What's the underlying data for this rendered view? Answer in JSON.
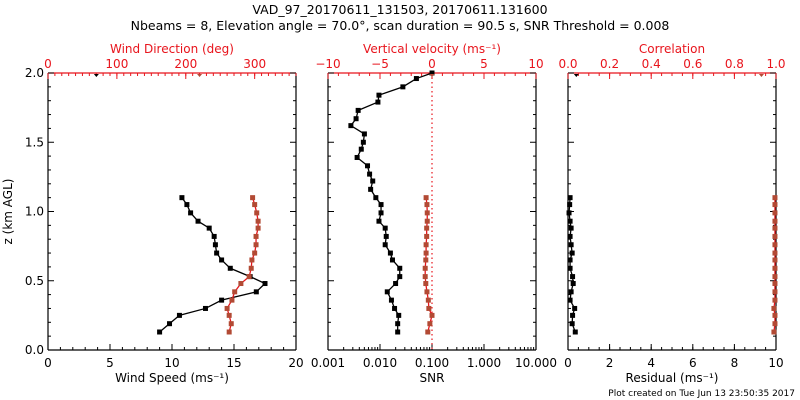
{
  "title_line1": "VAD_97_20170611_131503, 20170611.131600",
  "title_line2": "Nbeams = 8, Elevation angle = 70.0°, scan duration = 90.5 s, SNR Threshold = 0.008",
  "footer": "Plot created on Tue Jun 13 23:50:35 2017",
  "colors": {
    "primary": "#000000",
    "secondary": "#b24a34",
    "axis_secondary": "#e8141c"
  },
  "chart_data": [
    {
      "type": "line",
      "ylabel": "z (km AGL)",
      "ylim": [
        0.0,
        2.0
      ],
      "yticks": [
        "0.0",
        "0.5",
        "1.0",
        "1.5",
        "2.0"
      ],
      "bottom_axis": {
        "label": "Wind Speed (ms⁻¹)",
        "range": [
          0,
          20
        ],
        "ticks": [
          "0",
          "5",
          "10",
          "15",
          "20"
        ]
      },
      "top_axis": {
        "label": "Wind Direction (deg)",
        "range": [
          0,
          360
        ],
        "ticks": [
          "0",
          "100",
          "200",
          "300"
        ]
      },
      "z": [
        0.13,
        0.19,
        0.25,
        0.3,
        0.36,
        0.42,
        0.48,
        0.53,
        0.59,
        0.65,
        0.7,
        0.76,
        0.82,
        0.88,
        0.93,
        0.99,
        1.05,
        1.1
      ],
      "series": [
        {
          "name": "Wind Speed",
          "axis": "bottom",
          "color": "#000000",
          "values": [
            9.0,
            9.8,
            10.6,
            12.7,
            14.0,
            16.8,
            17.5,
            16.3,
            14.7,
            14.0,
            13.6,
            13.5,
            13.4,
            13.0,
            12.1,
            11.5,
            11.2,
            10.8
          ],
          "extra_point": {
            "z": 2.0,
            "value": 3.9
          }
        },
        {
          "name": "Wind Direction",
          "axis": "top",
          "color": "#b24a34",
          "values": [
            263,
            266,
            263,
            260,
            267,
            271,
            280,
            292,
            295,
            296,
            300,
            302,
            302,
            305,
            305,
            303,
            300,
            297
          ],
          "extra_point": {
            "z": 2.0,
            "value": 220
          }
        }
      ]
    },
    {
      "type": "line",
      "ylim": [
        0.0,
        2.0
      ],
      "bottom_axis": {
        "label": "SNR",
        "range": [
          0.001,
          10.0
        ],
        "scale": "log",
        "ticks": [
          "0.001",
          "0.010",
          "0.100",
          "1.000",
          "10.000"
        ]
      },
      "top_axis": {
        "label": "Vertical velocity (ms⁻¹)",
        "range": [
          -10,
          10
        ],
        "ticks": [
          "−10",
          "−5",
          "0",
          "5",
          "10"
        ]
      },
      "reference_line": {
        "axis": "top",
        "value": 0
      },
      "series": [
        {
          "name": "Vertical velocity",
          "axis": "top",
          "color": "#000000",
          "z": [
            0.13,
            0.19,
            0.25,
            0.3,
            0.36,
            0.42,
            0.48,
            0.53,
            0.59,
            0.65,
            0.7,
            0.76,
            0.82,
            0.88,
            0.93,
            0.99,
            1.05,
            1.1,
            1.16,
            1.22,
            1.27,
            1.33,
            1.39,
            1.45,
            1.5,
            1.56,
            1.62,
            1.67,
            1.73,
            1.79,
            1.84,
            1.9,
            1.96,
            2.0
          ],
          "values": [
            -3.3,
            -3.3,
            -3.2,
            -3.6,
            -3.9,
            -4.3,
            -3.5,
            -3.1,
            -3.1,
            -3.8,
            -4.0,
            -4.5,
            -4.4,
            -4.5,
            -5.1,
            -4.9,
            -4.9,
            -5.4,
            -5.9,
            -5.7,
            -6.0,
            -6.2,
            -7.2,
            -6.8,
            -6.6,
            -6.5,
            -7.8,
            -7.3,
            -7.1,
            -5.2,
            -5.1,
            -2.8,
            -1.5,
            0.0
          ]
        },
        {
          "name": "SNR",
          "axis": "bottom",
          "color": "#b24a34",
          "z": [
            0.13,
            0.19,
            0.25,
            0.3,
            0.36,
            0.42,
            0.48,
            0.53,
            0.59,
            0.65,
            0.7,
            0.76,
            0.82,
            0.88,
            0.93,
            0.99,
            1.05,
            1.1
          ],
          "values": [
            0.083,
            0.091,
            0.1,
            0.087,
            0.085,
            0.08,
            0.076,
            0.074,
            0.074,
            0.076,
            0.077,
            0.077,
            0.079,
            0.079,
            0.081,
            0.081,
            0.08,
            0.077
          ],
          "extra_point": {
            "z": 2.0,
            "value": 0.1
          }
        }
      ]
    },
    {
      "type": "line",
      "ylim": [
        0.0,
        2.0
      ],
      "bottom_axis": {
        "label": "Residual (ms⁻¹)",
        "range": [
          0,
          10
        ],
        "ticks": [
          "0",
          "2",
          "4",
          "6",
          "8",
          "10"
        ]
      },
      "top_axis": {
        "label": "Correlation",
        "range": [
          0.0,
          1.0
        ],
        "ticks": [
          "0.0",
          "0.2",
          "0.4",
          "0.6",
          "0.8",
          "1.0"
        ]
      },
      "z": [
        0.13,
        0.19,
        0.25,
        0.3,
        0.36,
        0.42,
        0.48,
        0.53,
        0.59,
        0.65,
        0.7,
        0.76,
        0.82,
        0.88,
        0.93,
        0.99,
        1.05,
        1.1
      ],
      "series": [
        {
          "name": "Residual",
          "axis": "bottom",
          "color": "#000000",
          "values": [
            0.35,
            0.2,
            0.22,
            0.32,
            0.1,
            0.15,
            0.25,
            0.22,
            0.1,
            0.1,
            0.2,
            0.15,
            0.1,
            0.15,
            0.1,
            0.05,
            0.08,
            0.1
          ],
          "extra_point": {
            "z": 2.0,
            "value": 0.4
          }
        },
        {
          "name": "Correlation",
          "axis": "top",
          "color": "#b24a34",
          "values": [
            0.99,
            0.995,
            0.995,
            0.99,
            0.995,
            0.995,
            0.995,
            0.995,
            0.995,
            0.995,
            0.995,
            0.995,
            0.995,
            0.995,
            0.995,
            0.995,
            0.995,
            0.995
          ],
          "extra_point": {
            "z": 2.0,
            "value": 0.93
          }
        }
      ]
    }
  ]
}
